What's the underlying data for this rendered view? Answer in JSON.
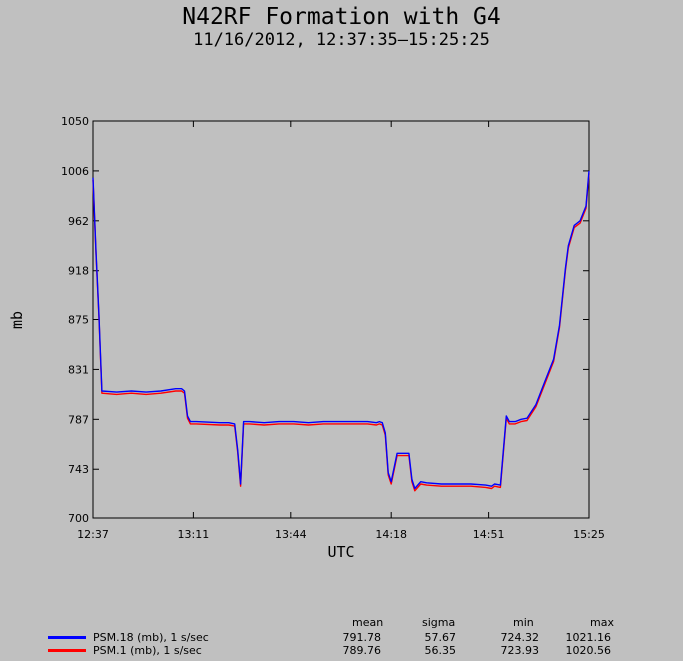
{
  "title": "N42RF Formation with G4",
  "subtitle": "11/16/2012, 12:37:35–15:25:25",
  "stats_headers": [
    "mean",
    "sigma",
    "min",
    "max"
  ],
  "legend": [
    {
      "name": "PSM.18 (mb), 1 s/sec",
      "color": "#0000ff",
      "mean": "791.78",
      "sigma": "57.67",
      "min": "724.32",
      "max": "1021.16"
    },
    {
      "name": "PSM.1 (mb), 1 s/sec",
      "color": "#ff0000",
      "mean": "789.76",
      "sigma": "56.35",
      "min": "723.93",
      "max": "1020.56"
    }
  ],
  "chart_data": {
    "type": "line",
    "title": "N42RF Formation with G4",
    "subtitle": "11/16/2012, 12:37:35–15:25:25",
    "xlabel": "UTC",
    "ylabel": "mb",
    "xlim": [
      "12:37",
      "15:25"
    ],
    "ylim": [
      700,
      1050
    ],
    "xticks": [
      "12:37",
      "13:11",
      "13:44",
      "14:18",
      "14:51",
      "15:25"
    ],
    "yticks": [
      "700",
      "743",
      "787",
      "831",
      "875",
      "918",
      "962",
      "1006",
      "1050"
    ],
    "grid": false,
    "x": [
      "12:37",
      "12:38",
      "12:39",
      "12:40",
      "12:45",
      "12:50",
      "12:55",
      "13:00",
      "13:05",
      "13:07",
      "13:08",
      "13:09",
      "13:10",
      "13:12",
      "13:20",
      "13:23",
      "13:25",
      "13:26",
      "13:27",
      "13:28",
      "13:30",
      "13:35",
      "13:40",
      "13:45",
      "13:50",
      "13:55",
      "14:00",
      "14:05",
      "14:10",
      "14:13",
      "14:14",
      "14:15",
      "14:16",
      "14:17",
      "14:18",
      "14:20",
      "14:24",
      "14:25",
      "14:26",
      "14:28",
      "14:30",
      "14:35",
      "14:40",
      "14:45",
      "14:50",
      "14:52",
      "14:53",
      "14:55",
      "14:57",
      "14:58",
      "14:59",
      "15:00",
      "15:02",
      "15:04",
      "15:07",
      "15:10",
      "15:13",
      "15:15",
      "15:17",
      "15:18",
      "15:20",
      "15:22",
      "15:24",
      "15:25"
    ],
    "series": [
      {
        "name": "PSM.18 (mb), 1 s/sec",
        "values": [
          1000,
          935,
          880,
          812,
          811,
          812,
          811,
          812,
          814,
          814,
          812,
          790,
          785,
          785,
          784,
          784,
          783,
          760,
          730,
          785,
          785,
          784,
          785,
          785,
          784,
          785,
          785,
          785,
          785,
          784,
          785,
          784,
          775,
          740,
          732,
          757,
          757,
          734,
          726,
          732,
          731,
          730,
          730,
          730,
          729,
          728,
          730,
          729,
          790,
          785,
          785,
          785,
          787,
          788,
          800,
          820,
          840,
          870,
          920,
          940,
          958,
          962,
          975,
          1006
        ]
      },
      {
        "name": "PSM.1 (mb), 1 s/sec",
        "values": [
          998,
          933,
          878,
          810,
          809,
          810,
          809,
          810,
          812,
          812,
          810,
          788,
          783,
          783,
          782,
          782,
          781,
          758,
          728,
          783,
          783,
          782,
          783,
          783,
          782,
          783,
          783,
          783,
          783,
          782,
          783,
          782,
          773,
          738,
          730,
          755,
          755,
          732,
          724,
          730,
          729,
          728,
          728,
          728,
          727,
          726,
          728,
          727,
          788,
          783,
          783,
          783,
          785,
          786,
          798,
          818,
          838,
          868,
          918,
          938,
          956,
          960,
          973,
          1004
        ]
      }
    ]
  }
}
